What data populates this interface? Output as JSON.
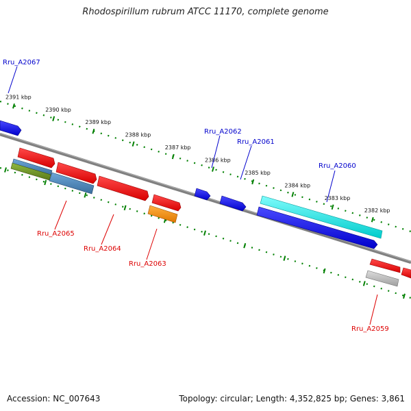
{
  "title": "Rhodospirillum rubrum ATCC 11170, complete genome",
  "scale_labels": [
    "2391 kbp",
    "2390 kbp",
    "2389 kbp",
    "2388 kbp",
    "2387 kbp",
    "2386 kbp",
    "2385 kbp",
    "2384 kbp",
    "2383 kbp",
    "2382 kbp"
  ],
  "gene_labels": {
    "Rru_A2067": "Rru_A2067",
    "Rru_A2062": "Rru_A2062",
    "Rru_A2061": "Rru_A2061",
    "Rru_A2060": "Rru_A2060",
    "Rru_A2065": "Rru_A2065",
    "Rru_A2064": "Rru_A2064",
    "Rru_A2063": "Rru_A2063",
    "Rru_A2059": "Rru_A2059"
  },
  "footer": {
    "accession": "Accession: NC_007643",
    "stats": "Topology: circular; Length: 4,352,825 bp; Genes: 3,861"
  },
  "colors": {
    "blue_gene": "#0a0ae6",
    "red_gene": "#ee1111",
    "cyan_gene": "#11e3e3",
    "steel_gene": "#4682b4",
    "olive_gene": "#6b8e23",
    "orange_gene": "#ff8c00",
    "grey_gene": "#b0b0b0",
    "backbone": "#808080",
    "ticks": "#008000",
    "label_blue": "#0000cc",
    "label_red": "#dd0000"
  }
}
